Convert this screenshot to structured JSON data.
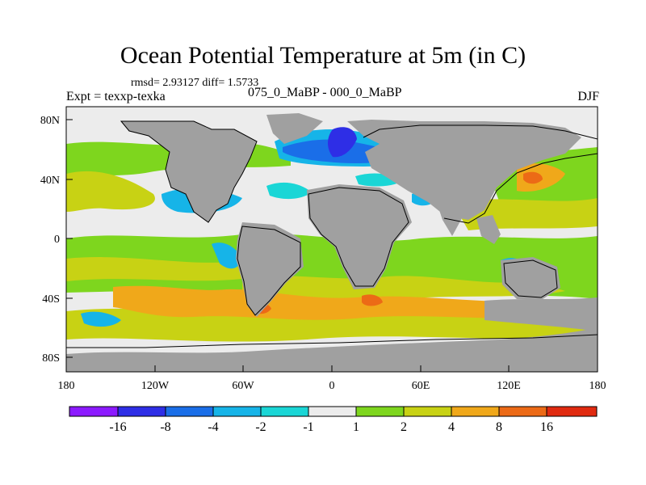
{
  "header": {
    "title": "Ocean Potential Temperature at 5m (in C)",
    "stats": "rmsd= 2.93127 diff= 1.5733",
    "expt": "Expt = texxp-texka",
    "subtitle": "075_0_MaBP - 000_0_MaBP",
    "season": "DJF"
  },
  "axes": {
    "lat_labels": [
      "80N",
      "40N",
      "0",
      "40S",
      "80S"
    ],
    "lon_labels": [
      "180",
      "120W",
      "60W",
      "0",
      "60E",
      "120E",
      "180"
    ]
  },
  "colorbar": {
    "labels": [
      "-16",
      "-8",
      "-4",
      "-2",
      "-1",
      "1",
      "2",
      "4",
      "8",
      "16"
    ],
    "colors": [
      "#8c1aff",
      "#2e2ee6",
      "#1a6ee8",
      "#16b4e8",
      "#1ad6d6",
      "#ececec",
      "#7ed61e",
      "#c8d214",
      "#f0a81a",
      "#ec6a16",
      "#e02a10"
    ]
  },
  "map_colors": {
    "land": "#a0a0a0",
    "neutral": "#ececec",
    "coast": "#000000"
  }
}
